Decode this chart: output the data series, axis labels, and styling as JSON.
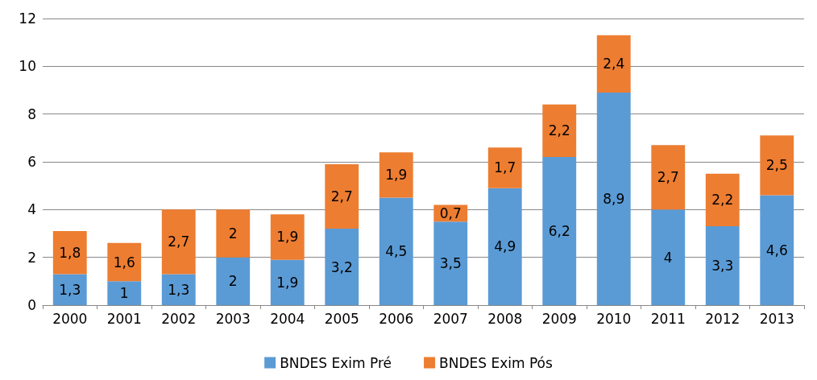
{
  "chart_data": {
    "type": "bar",
    "stacked": true,
    "categories": [
      "2000",
      "2001",
      "2002",
      "2003",
      "2004",
      "2005",
      "2006",
      "2007",
      "2008",
      "2009",
      "2010",
      "2011",
      "2012",
      "2013"
    ],
    "series": [
      {
        "name": "BNDES Exim Pré",
        "color": "#5b9bd5",
        "values": [
          1.3,
          1,
          1.3,
          2,
          1.9,
          3.2,
          4.5,
          3.5,
          4.9,
          6.2,
          8.9,
          4,
          3.3,
          4.6
        ],
        "value_labels": [
          "1,3",
          "1",
          "1,3",
          "2",
          "1,9",
          "3,2",
          "4,5",
          "3,5",
          "4,9",
          "6,2",
          "8,9",
          "4",
          "3,3",
          "4,6"
        ]
      },
      {
        "name": "BNDES Exim Pós",
        "color": "#ed7d31",
        "values": [
          1.8,
          1.6,
          2.7,
          2,
          1.9,
          2.7,
          1.9,
          0.7,
          1.7,
          2.2,
          2.4,
          2.7,
          2.2,
          2.5
        ],
        "value_labels": [
          "1,8",
          "1,6",
          "2,7",
          "2",
          "1,9",
          "2,7",
          "1,9",
          "0,7",
          "1,7",
          "2,2",
          "2,4",
          "2,7",
          "2,2",
          "2,5"
        ]
      }
    ],
    "ylim": [
      0,
      12
    ],
    "yticks": [
      0,
      2,
      4,
      6,
      8,
      10,
      12
    ],
    "grid": "y",
    "legend": "bottom"
  }
}
